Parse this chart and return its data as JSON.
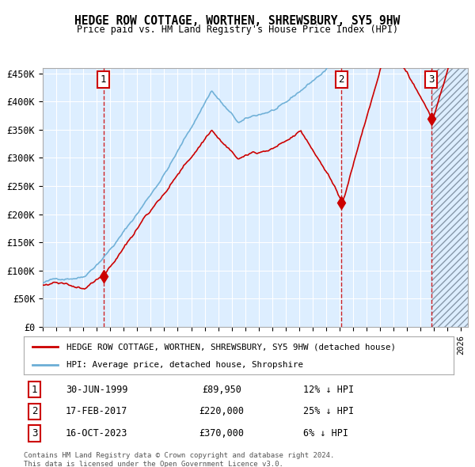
{
  "title": "HEDGE ROW COTTAGE, WORTHEN, SHREWSBURY, SY5 9HW",
  "subtitle": "Price paid vs. HM Land Registry's House Price Index (HPI)",
  "hpi_color": "#6baed6",
  "price_color": "#cc0000",
  "sale_color": "#cc0000",
  "bg_color": "#ddeeff",
  "sales": [
    {
      "num": 1,
      "date_label": "30-JUN-1999",
      "x": 1999.5,
      "price": 89950,
      "pct": "12%",
      "dir": "↓"
    },
    {
      "num": 2,
      "date_label": "17-FEB-2017",
      "x": 2017.12,
      "price": 220000,
      "pct": "25%",
      "dir": "↓"
    },
    {
      "num": 3,
      "date_label": "16-OCT-2023",
      "x": 2023.79,
      "price": 370000,
      "pct": "6%",
      "dir": "↓"
    }
  ],
  "xlim": [
    1995.0,
    2026.5
  ],
  "ylim": [
    0,
    460000
  ],
  "yticks": [
    0,
    50000,
    100000,
    150000,
    200000,
    250000,
    300000,
    350000,
    400000,
    450000
  ],
  "ytick_labels": [
    "£0",
    "£50K",
    "£100K",
    "£150K",
    "£200K",
    "£250K",
    "£300K",
    "£350K",
    "£400K",
    "£450K"
  ],
  "legend_label_red": "HEDGE ROW COTTAGE, WORTHEN, SHREWSBURY, SY5 9HW (detached house)",
  "legend_label_blue": "HPI: Average price, detached house, Shropshire",
  "footer1": "Contains HM Land Registry data © Crown copyright and database right 2024.",
  "footer2": "This data is licensed under the Open Government Licence v3.0."
}
